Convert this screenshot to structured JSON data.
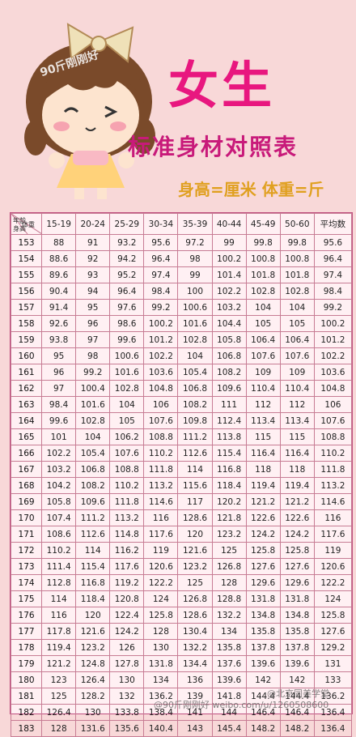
{
  "header": {
    "title": "女生",
    "subtitle": "标准身材对照表",
    "units": "身高=厘米  体重=斤",
    "watermark": "90斤刚刚好"
  },
  "table": {
    "corner": {
      "top": "年龄",
      "mid": "体重",
      "bottom": "身高"
    },
    "columns": [
      "15-19",
      "20-24",
      "25-29",
      "30-34",
      "35-39",
      "40-44",
      "45-49",
      "50-60",
      "平均数"
    ],
    "rows": [
      [
        "153",
        "88",
        "91",
        "93.2",
        "95.6",
        "97.2",
        "99",
        "99.8",
        "99.8",
        "95.6"
      ],
      [
        "154",
        "88.6",
        "92",
        "94.2",
        "96.4",
        "98",
        "100.2",
        "100.8",
        "100.8",
        "96.4"
      ],
      [
        "155",
        "89.6",
        "93",
        "95.2",
        "97.4",
        "99",
        "101.4",
        "101.8",
        "101.8",
        "97.4"
      ],
      [
        "156",
        "90.4",
        "94",
        "96.4",
        "98.4",
        "100",
        "102.2",
        "102.8",
        "102.8",
        "98.4"
      ],
      [
        "157",
        "91.4",
        "95",
        "97.6",
        "99.2",
        "100.6",
        "103.2",
        "104",
        "104",
        "99.2"
      ],
      [
        "158",
        "92.6",
        "96",
        "98.6",
        "100.2",
        "101.6",
        "104.4",
        "105",
        "105",
        "100.2"
      ],
      [
        "159",
        "93.8",
        "97",
        "99.6",
        "101.2",
        "102.8",
        "105.8",
        "106.4",
        "106.4",
        "101.2"
      ],
      [
        "160",
        "95",
        "98",
        "100.6",
        "102.2",
        "104",
        "106.8",
        "107.6",
        "107.6",
        "102.2"
      ],
      [
        "161",
        "96",
        "99.2",
        "101.6",
        "103.6",
        "105.4",
        "108.2",
        "109",
        "109",
        "103.6"
      ],
      [
        "162",
        "97",
        "100.4",
        "102.8",
        "104.8",
        "106.8",
        "109.6",
        "110.4",
        "110.4",
        "104.8"
      ],
      [
        "163",
        "98.4",
        "101.6",
        "104",
        "106",
        "108.2",
        "111",
        "112",
        "112",
        "106"
      ],
      [
        "164",
        "99.6",
        "102.8",
        "105",
        "107.6",
        "109.8",
        "112.4",
        "113.4",
        "113.4",
        "107.6"
      ],
      [
        "165",
        "101",
        "104",
        "106.2",
        "108.8",
        "111.2",
        "113.8",
        "115",
        "115",
        "108.8"
      ],
      [
        "166",
        "102.2",
        "105.4",
        "107.6",
        "110.2",
        "112.6",
        "115.4",
        "116.4",
        "116.4",
        "110.2"
      ],
      [
        "167",
        "103.2",
        "106.8",
        "108.8",
        "111.8",
        "114",
        "116.8",
        "118",
        "118",
        "111.8"
      ],
      [
        "168",
        "104.2",
        "108.2",
        "110.2",
        "113.2",
        "115.6",
        "118.4",
        "119.4",
        "119.4",
        "113.2"
      ],
      [
        "169",
        "105.8",
        "109.6",
        "111.8",
        "114.6",
        "117",
        "120.2",
        "121.2",
        "121.2",
        "114.6"
      ],
      [
        "170",
        "107.4",
        "111.2",
        "113.2",
        "116",
        "128.6",
        "121.8",
        "122.6",
        "122.6",
        "116"
      ],
      [
        "171",
        "108.6",
        "112.6",
        "114.8",
        "117.6",
        "120",
        "123.2",
        "124.2",
        "124.2",
        "117.6"
      ],
      [
        "172",
        "110.2",
        "114",
        "116.2",
        "119",
        "121.6",
        "125",
        "125.8",
        "125.8",
        "119"
      ],
      [
        "173",
        "111.4",
        "115.4",
        "117.6",
        "120.6",
        "123.2",
        "126.8",
        "127.6",
        "127.6",
        "120.6"
      ],
      [
        "174",
        "112.8",
        "116.8",
        "119.2",
        "122.2",
        "125",
        "128",
        "129.6",
        "129.6",
        "122.2"
      ],
      [
        "175",
        "114",
        "118.4",
        "120.8",
        "124",
        "126.8",
        "128.8",
        "131.8",
        "131.8",
        "124"
      ],
      [
        "176",
        "116",
        "120",
        "122.4",
        "125.8",
        "128.6",
        "132.2",
        "134.8",
        "134.8",
        "125.8"
      ],
      [
        "177",
        "117.8",
        "121.6",
        "124.2",
        "128",
        "130.4",
        "134",
        "135.8",
        "135.8",
        "127.6"
      ],
      [
        "178",
        "119.4",
        "123.2",
        "126",
        "130",
        "132.2",
        "135.8",
        "137.8",
        "137.8",
        "129.2"
      ],
      [
        "179",
        "121.2",
        "124.8",
        "127.8",
        "131.8",
        "134.4",
        "137.6",
        "139.6",
        "139.6",
        "131"
      ],
      [
        "180",
        "123",
        "126.4",
        "130",
        "134",
        "136",
        "139.6",
        "142",
        "142",
        "133"
      ],
      [
        "181",
        "125",
        "128.2",
        "132",
        "136.2",
        "139",
        "141.8",
        "144.4",
        "144.4",
        "136.2"
      ],
      [
        "182",
        "126.4",
        "130",
        "133.8",
        "138.4",
        "141",
        "144",
        "146.4",
        "146.4",
        "136.4"
      ],
      [
        "183",
        "128",
        "131.6",
        "135.6",
        "140.4",
        "143",
        "145.4",
        "148.2",
        "148.2",
        "136.4"
      ]
    ]
  },
  "watermarks": {
    "bottom": "@90斤刚刚好 weibo.com/u/1260508600",
    "right": "@北京同美学堂"
  },
  "colors": {
    "background": "#f8d8d8",
    "title": "#e8177f",
    "subtitle": "#c81a7a",
    "units": "#e0a020",
    "grid": "#c77c94"
  }
}
